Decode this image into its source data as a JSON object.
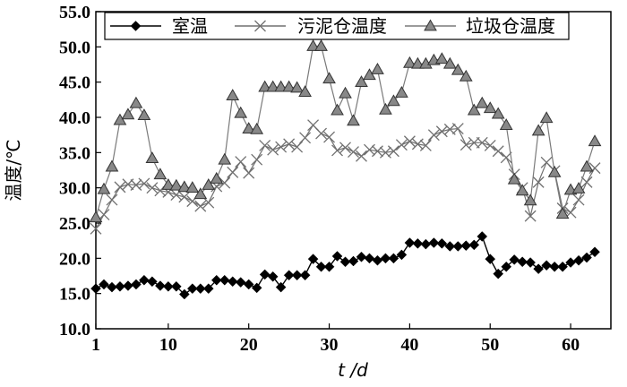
{
  "chart_data": {
    "type": "line",
    "xlabel": "t /d",
    "ylabel": "温度/℃",
    "xlim": [
      1,
      65
    ],
    "ylim": [
      10,
      55
    ],
    "xticks": [
      "1",
      "10",
      "20",
      "30",
      "40",
      "50",
      "60"
    ],
    "yticks": [
      "10.0",
      "15.0",
      "20.0",
      "25.0",
      "30.0",
      "35.0",
      "40.0",
      "45.0",
      "50.0",
      "55.0"
    ],
    "grid": false,
    "legend_position": "top",
    "series": [
      {
        "name": "室温",
        "marker": "diamond",
        "color": "#000000",
        "x": [
          1,
          2,
          3,
          4,
          5,
          6,
          7,
          8,
          9,
          10,
          11,
          12,
          13,
          14,
          15,
          16,
          17,
          18,
          19,
          20,
          21,
          22,
          23,
          24,
          25,
          26,
          27,
          28,
          29,
          30,
          31,
          32,
          33,
          34,
          35,
          36,
          37,
          38,
          39,
          40,
          41,
          42,
          43,
          44,
          45,
          46,
          47,
          48,
          49,
          50,
          51,
          52,
          53,
          54,
          55,
          56,
          57,
          58,
          59,
          60,
          61,
          62,
          63
        ],
        "y": [
          15.7,
          16.3,
          15.9,
          16.0,
          16.1,
          16.3,
          16.9,
          16.7,
          16.1,
          16.0,
          16.0,
          14.9,
          15.7,
          15.7,
          15.7,
          16.9,
          16.9,
          16.7,
          16.6,
          16.3,
          15.8,
          17.7,
          17.4,
          15.9,
          17.6,
          17.6,
          17.6,
          19.9,
          18.8,
          18.8,
          20.3,
          19.5,
          19.6,
          20.2,
          20.0,
          19.7,
          20.0,
          20.0,
          20.5,
          22.2,
          22.1,
          22.0,
          22.2,
          22.1,
          21.7,
          21.7,
          21.8,
          21.9,
          23.1,
          19.9,
          17.8,
          18.8,
          19.8,
          19.5,
          19.4,
          18.5,
          19.0,
          18.8,
          18.8,
          19.4,
          19.7,
          20.1,
          20.9
        ]
      },
      {
        "name": "污泥仓温度",
        "marker": "x",
        "color": "#707070",
        "x": [
          1,
          2,
          3,
          4,
          5,
          6,
          7,
          8,
          9,
          10,
          11,
          12,
          13,
          14,
          15,
          16,
          17,
          18,
          19,
          20,
          21,
          22,
          23,
          24,
          25,
          26,
          27,
          28,
          29,
          30,
          31,
          32,
          33,
          34,
          35,
          36,
          37,
          38,
          39,
          40,
          41,
          42,
          43,
          44,
          45,
          46,
          47,
          48,
          49,
          50,
          51,
          52,
          53,
          54,
          55,
          56,
          57,
          58,
          59,
          60,
          61,
          62,
          63
        ],
        "y": [
          24.2,
          26.2,
          28.3,
          30.1,
          30.5,
          30.4,
          30.6,
          30.0,
          29.6,
          29.4,
          29.0,
          28.7,
          28.1,
          27.4,
          27.9,
          30.2,
          30.7,
          32.2,
          33.7,
          32.1,
          34.0,
          36.0,
          35.4,
          35.8,
          36.2,
          35.8,
          37.1,
          38.9,
          37.7,
          37.2,
          35.3,
          35.7,
          35.1,
          34.5,
          35.4,
          35.2,
          35.0,
          35.2,
          36.1,
          36.6,
          36.2,
          36.0,
          37.5,
          38.0,
          38.3,
          38.4,
          36.1,
          36.4,
          36.4,
          36.0,
          35.2,
          34.3,
          31.9,
          30.0,
          26.0,
          30.8,
          33.6,
          32.4,
          27.1,
          26.5,
          28.3,
          30.8,
          32.8
        ]
      },
      {
        "name": "垃圾仓温度",
        "marker": "triangle",
        "color": "#7a7a7a",
        "x": [
          1,
          2,
          3,
          4,
          5,
          6,
          7,
          8,
          9,
          10,
          11,
          12,
          13,
          14,
          15,
          16,
          17,
          18,
          19,
          20,
          21,
          22,
          23,
          24,
          25,
          26,
          27,
          28,
          29,
          30,
          31,
          32,
          33,
          34,
          35,
          36,
          37,
          38,
          39,
          40,
          41,
          42,
          43,
          44,
          45,
          46,
          47,
          48,
          49,
          50,
          51,
          52,
          53,
          54,
          55,
          56,
          57,
          58,
          59,
          60,
          61,
          62,
          63
        ],
        "y": [
          25.8,
          29.8,
          33.0,
          39.6,
          40.4,
          42.0,
          40.3,
          34.2,
          31.9,
          30.4,
          30.3,
          30.1,
          30.0,
          29.1,
          30.4,
          31.3,
          34.0,
          43.1,
          40.6,
          38.4,
          38.3,
          44.3,
          44.3,
          44.3,
          44.3,
          44.2,
          43.6,
          50.1,
          50.1,
          45.5,
          41.0,
          43.4,
          39.5,
          45.0,
          46.0,
          46.8,
          41.1,
          42.3,
          43.5,
          47.7,
          47.6,
          47.6,
          48.1,
          48.3,
          47.6,
          46.7,
          45.8,
          41.0,
          42.0,
          41.3,
          40.5,
          38.9,
          31.2,
          29.6,
          28.2,
          38.1,
          39.9,
          32.2,
          26.3,
          29.7,
          29.9,
          33.0,
          36.6
        ]
      }
    ]
  }
}
